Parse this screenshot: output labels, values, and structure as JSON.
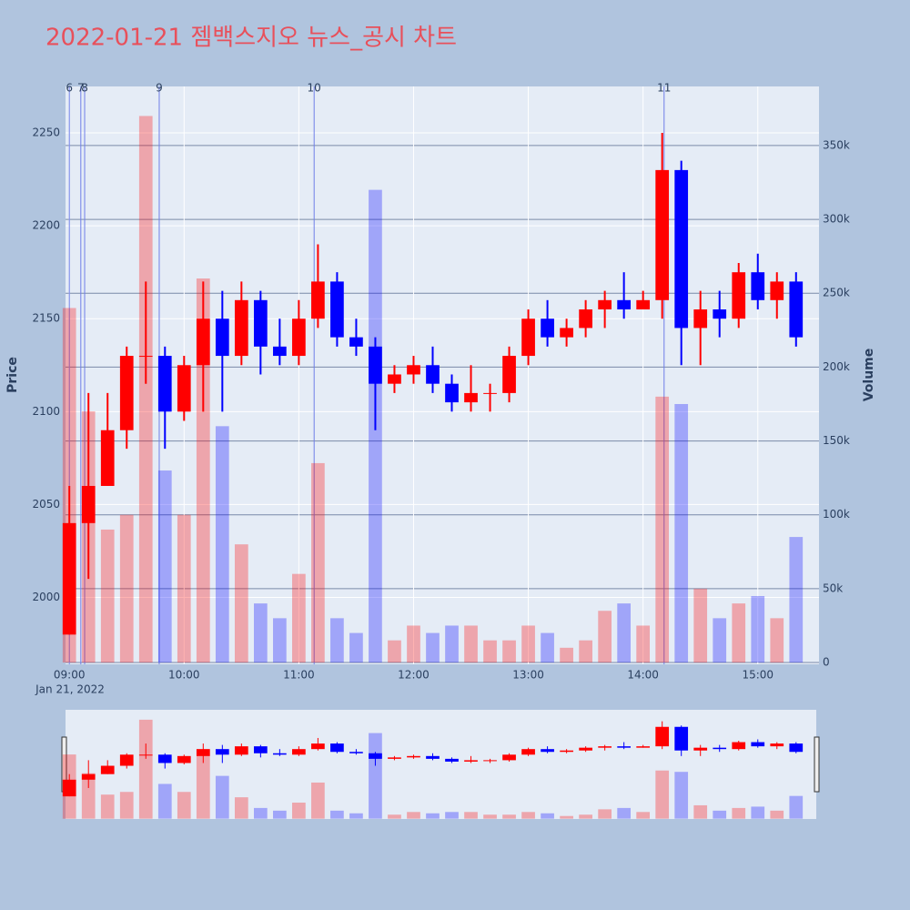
{
  "chart_data": {
    "type": "candlestick",
    "title": "2022-01-21 젬백스지오 뉴스_공시 차트",
    "y_label": "Price",
    "y2_label": "Volume",
    "x_sublabel": "Jan 21, 2022",
    "up_color": "#ff0000",
    "down_color": "#0000ff",
    "xlim": [
      "08:58",
      "15:32"
    ],
    "xticks": [
      "09:00",
      "10:00",
      "11:00",
      "12:00",
      "13:00",
      "14:00",
      "15:00"
    ],
    "ylim": [
      1964,
      2275
    ],
    "yticks": [
      2000,
      2050,
      2100,
      2150,
      2200,
      2250
    ],
    "y2lim": [
      -1200,
      390000
    ],
    "y2ticks": [
      {
        "value": 0,
        "label": "0"
      },
      {
        "value": 50000,
        "label": "50k"
      },
      {
        "value": 100000,
        "label": "100k"
      },
      {
        "value": 150000,
        "label": "150k"
      },
      {
        "value": 200000,
        "label": "200k"
      },
      {
        "value": 250000,
        "label": "250k"
      },
      {
        "value": 300000,
        "label": "300k"
      },
      {
        "value": 350000,
        "label": "350k"
      }
    ],
    "news": [
      {
        "label": "6",
        "time": "09:00"
      },
      {
        "label": "7",
        "time": "09:06"
      },
      {
        "label": "8",
        "time": "09:08"
      },
      {
        "label": "9",
        "time": "09:47"
      },
      {
        "label": "10",
        "time": "11:08"
      },
      {
        "label": "11",
        "time": "14:11"
      }
    ],
    "x": [
      "09:00",
      "09:10",
      "09:20",
      "09:30",
      "09:40",
      "09:50",
      "10:00",
      "10:10",
      "10:20",
      "10:30",
      "10:40",
      "10:50",
      "11:00",
      "11:10",
      "11:20",
      "11:30",
      "11:40",
      "11:50",
      "12:00",
      "12:10",
      "12:20",
      "12:30",
      "12:40",
      "12:50",
      "13:00",
      "13:10",
      "13:20",
      "13:30",
      "13:40",
      "13:50",
      "14:00",
      "14:10",
      "14:20",
      "14:30",
      "14:40",
      "14:50",
      "15:00",
      "15:10",
      "15:20"
    ],
    "open": [
      1980,
      2040,
      2060,
      2090,
      2130,
      2130,
      2100,
      2125,
      2150,
      2130,
      2160,
      2135,
      2130,
      2150,
      2170,
      2140,
      2135,
      2115,
      2120,
      2125,
      2115,
      2105,
      2110,
      2110,
      2130,
      2150,
      2140,
      2145,
      2155,
      2160,
      2155,
      2160,
      2230,
      2145,
      2155,
      2150,
      2175,
      2160,
      2170
    ],
    "high": [
      2060,
      2110,
      2110,
      2135,
      2170,
      2135,
      2130,
      2170,
      2165,
      2170,
      2165,
      2150,
      2160,
      2190,
      2175,
      2150,
      2140,
      2125,
      2130,
      2135,
      2120,
      2125,
      2115,
      2135,
      2155,
      2160,
      2150,
      2160,
      2165,
      2175,
      2165,
      2250,
      2235,
      2165,
      2165,
      2180,
      2185,
      2175,
      2175
    ],
    "low": [
      1980,
      2010,
      2060,
      2080,
      2115,
      2080,
      2095,
      2100,
      2100,
      2125,
      2120,
      2125,
      2125,
      2145,
      2135,
      2130,
      2090,
      2110,
      2115,
      2110,
      2100,
      2100,
      2100,
      2105,
      2125,
      2135,
      2135,
      2140,
      2145,
      2150,
      2155,
      2150,
      2125,
      2125,
      2140,
      2145,
      2155,
      2150,
      2135
    ],
    "close": [
      2040,
      2060,
      2090,
      2130,
      2130,
      2100,
      2125,
      2150,
      2130,
      2160,
      2135,
      2130,
      2150,
      2170,
      2140,
      2135,
      2115,
      2120,
      2125,
      2115,
      2105,
      2110,
      2110,
      2130,
      2150,
      2140,
      2145,
      2155,
      2160,
      2155,
      2160,
      2230,
      2145,
      2155,
      2150,
      2175,
      2160,
      2170,
      2140
    ],
    "volume": [
      240000,
      170000,
      90000,
      100000,
      370000,
      130000,
      100000,
      260000,
      160000,
      80000,
      40000,
      30000,
      60000,
      135000,
      30000,
      20000,
      320000,
      15000,
      25000,
      20000,
      25000,
      25000,
      15000,
      15000,
      25000,
      20000,
      10000,
      15000,
      35000,
      40000,
      25000,
      180000,
      175000,
      50000,
      30000,
      40000,
      45000,
      30000,
      85000
    ]
  }
}
